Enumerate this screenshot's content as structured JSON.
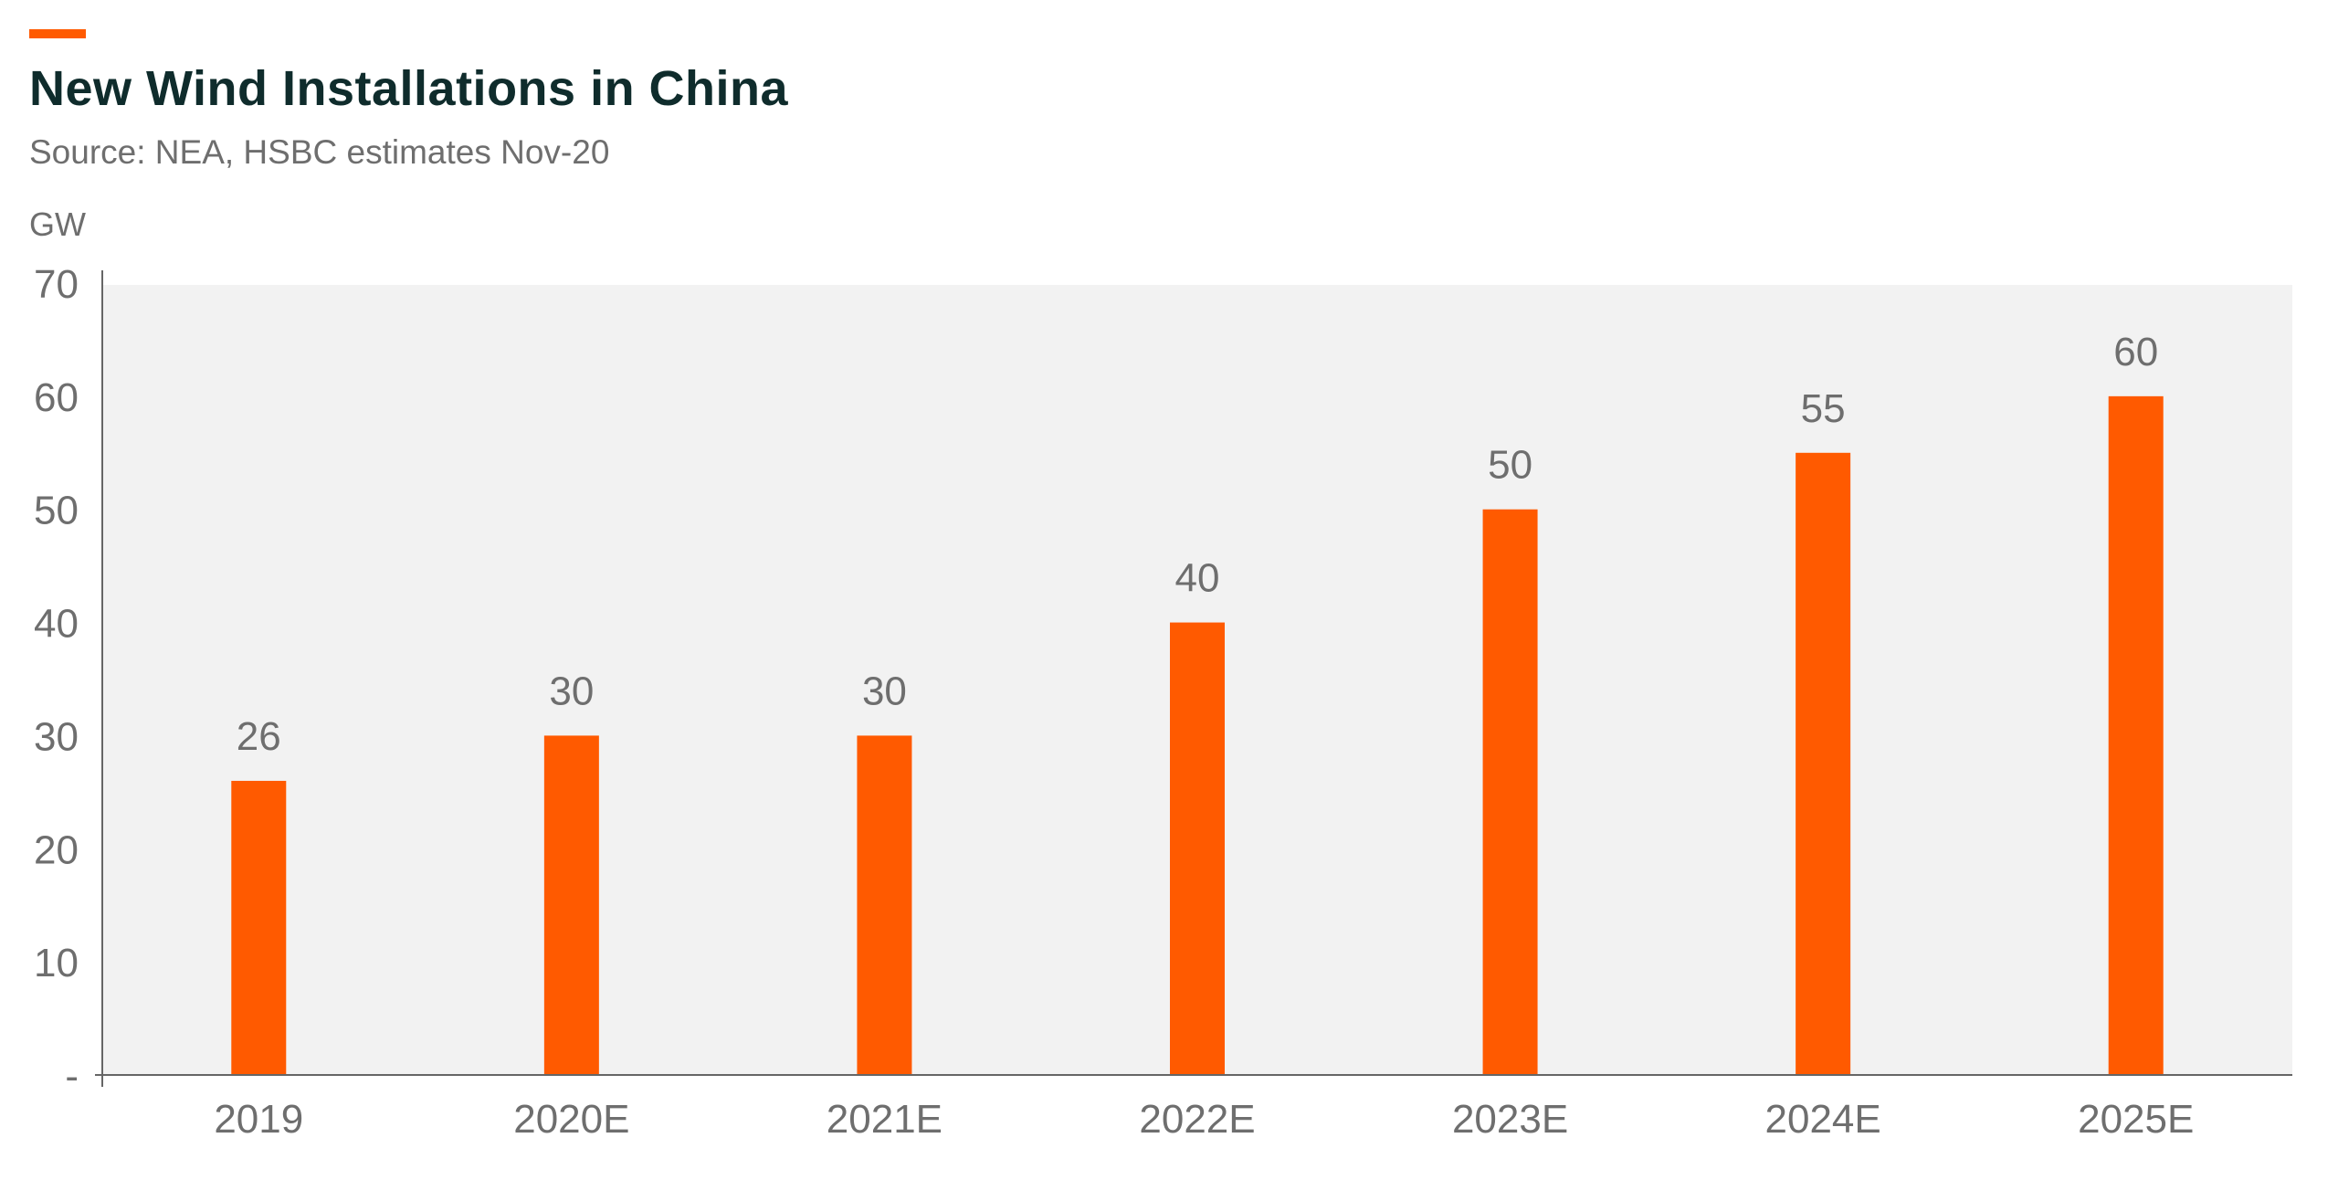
{
  "header": {
    "title": "New Wind Installations in China",
    "subtitle": "Source: NEA, HSBC estimates Nov-20"
  },
  "colors": {
    "accent": "#ff5a00",
    "bar": "#ff5a00",
    "plot_background": "#f2f2f2",
    "title": "#0f2c2c",
    "text_muted": "#6e6e6e"
  },
  "chart_data": {
    "type": "bar",
    "title": "New Wind Installations in China",
    "subtitle": "Source: NEA, HSBC estimates Nov-20",
    "ylabel": "GW",
    "xlabel": "",
    "categories": [
      "2019",
      "2020E",
      "2021E",
      "2022E",
      "2023E",
      "2024E",
      "2025E"
    ],
    "values": [
      26,
      30,
      30,
      40,
      50,
      55,
      60
    ],
    "data_labels": [
      "26",
      "30",
      "30",
      "40",
      "50",
      "55",
      "60"
    ],
    "ylim": [
      0,
      70
    ],
    "yticks": [
      0,
      10,
      20,
      30,
      40,
      50,
      60,
      70
    ],
    "ytick_labels": [
      "-",
      "10",
      "20",
      "30",
      "40",
      "50",
      "60",
      "70"
    ],
    "grid": false,
    "legend": "none"
  }
}
